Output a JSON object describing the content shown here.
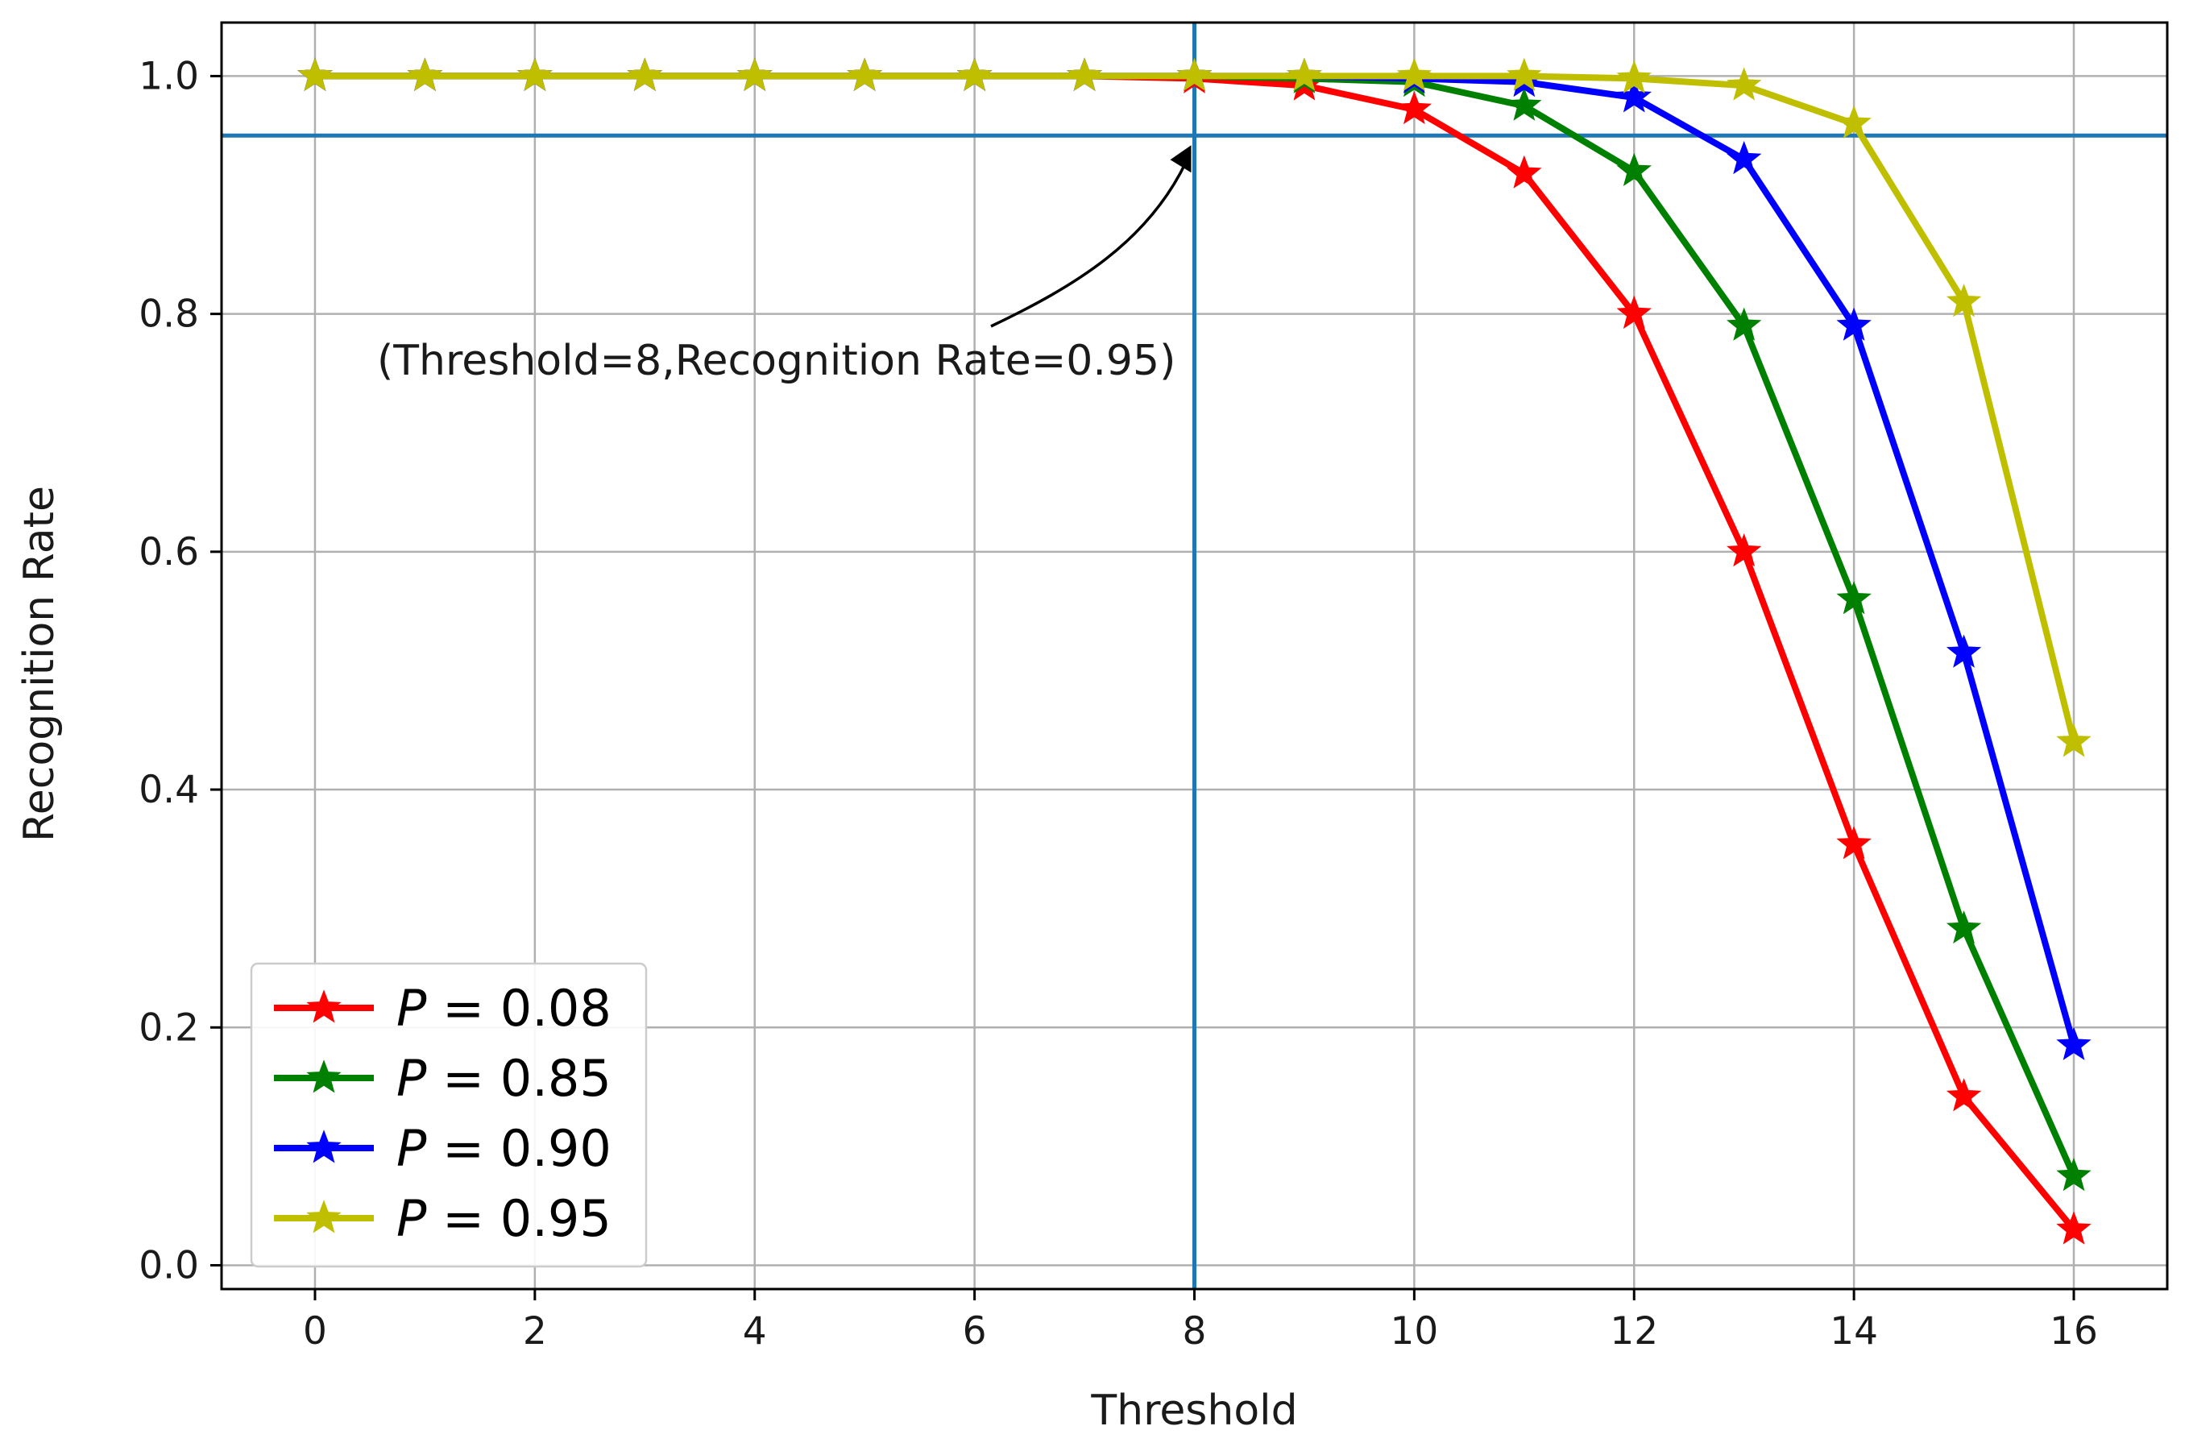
{
  "chart_data": {
    "type": "line",
    "title": "",
    "xlabel": "Threshold",
    "ylabel": "Recognition Rate",
    "xlim": [
      -0.85,
      16.85
    ],
    "ylim": [
      -0.02,
      1.045
    ],
    "xticks": [
      0,
      2,
      4,
      6,
      8,
      10,
      12,
      14,
      16
    ],
    "yticks": [
      0.0,
      0.2,
      0.4,
      0.6,
      0.8,
      1.0
    ],
    "xtick_labels": [
      "0",
      "2",
      "4",
      "6",
      "8",
      "10",
      "12",
      "14",
      "16"
    ],
    "ytick_labels": [
      "0.0",
      "0.2",
      "0.4",
      "0.6",
      "0.8",
      "1.0"
    ],
    "grid": true,
    "marker": "star",
    "x": [
      0,
      1,
      2,
      3,
      4,
      5,
      6,
      7,
      8,
      9,
      10,
      11,
      12,
      13,
      14,
      15,
      16
    ],
    "series": [
      {
        "name": "P = 0.08",
        "color": "#ff0000",
        "values": [
          1.0,
          1.0,
          1.0,
          1.0,
          1.0,
          1.0,
          1.0,
          1.0,
          0.998,
          0.992,
          0.972,
          0.918,
          0.8,
          0.6,
          0.354,
          0.142,
          0.03
        ]
      },
      {
        "name": "P = 0.85",
        "color": "#008000",
        "values": [
          1.0,
          1.0,
          1.0,
          1.0,
          1.0,
          1.0,
          1.0,
          1.0,
          1.0,
          0.998,
          0.995,
          0.975,
          0.92,
          0.79,
          0.56,
          0.283,
          0.075
        ]
      },
      {
        "name": "P = 0.90",
        "color": "#0000ff",
        "values": [
          1.0,
          1.0,
          1.0,
          1.0,
          1.0,
          1.0,
          1.0,
          1.0,
          1.0,
          1.0,
          0.998,
          0.995,
          0.982,
          0.93,
          0.79,
          0.515,
          0.185
        ]
      },
      {
        "name": "P = 0.95",
        "color": "#bfbf00",
        "values": [
          1.0,
          1.0,
          1.0,
          1.0,
          1.0,
          1.0,
          1.0,
          1.0,
          1.0,
          1.0,
          1.0,
          1.0,
          0.998,
          0.992,
          0.96,
          0.81,
          0.44
        ]
      }
    ],
    "reference_lines": {
      "vertical_x": 8,
      "horizontal_y": 0.95,
      "color": "#1f77b4"
    },
    "annotation": {
      "text": "(Threshold=8,Recognition Rate=0.95)",
      "point": [
        8,
        0.95
      ]
    },
    "legend": {
      "placement": "lower-left",
      "entries": [
        {
          "prefix": "P",
          "rest": " = 0.08"
        },
        {
          "prefix": "P",
          "rest": " = 0.85"
        },
        {
          "prefix": "P",
          "rest": " = 0.90"
        },
        {
          "prefix": "P",
          "rest": " = 0.95"
        }
      ]
    }
  }
}
